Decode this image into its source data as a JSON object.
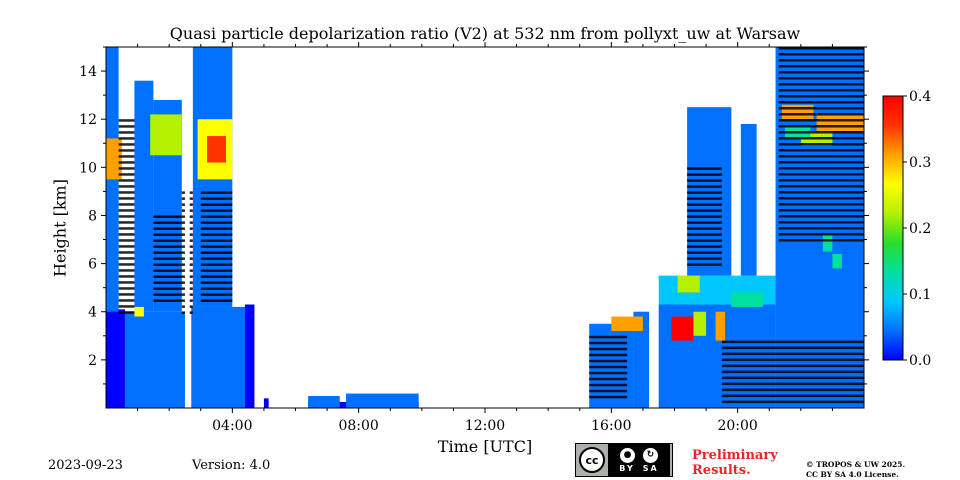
{
  "chart_data": {
    "type": "heatmap",
    "title": "Quasi particle depolarization ratio (V2) at 532 nm from pollyxt_uw at Warsaw",
    "xlabel": "Time [UTC]",
    "ylabel": "Height [km]",
    "x_ticks": [
      "04:00",
      "08:00",
      "12:00",
      "16:00",
      "20:00"
    ],
    "x_tick_hours": [
      4,
      8,
      12,
      16,
      20
    ],
    "xlim_hours": [
      0,
      24
    ],
    "y_ticks": [
      2,
      4,
      6,
      8,
      10,
      12,
      14
    ],
    "ylim_km": [
      0,
      15
    ],
    "colorbar": {
      "ticks": [
        "0.0",
        "0.1",
        "0.2",
        "0.3",
        "0.4"
      ],
      "tick_values": [
        0.0,
        0.1,
        0.2,
        0.3,
        0.4
      ],
      "range": [
        0.0,
        0.4
      ],
      "colormap": [
        "#0000ff",
        "#0070ff",
        "#00c8ff",
        "#00e0a0",
        "#2cdc2c",
        "#b4f000",
        "#ffff00",
        "#ffa000",
        "#ff3200",
        "#ff0000"
      ]
    },
    "regions": [
      {
        "t0": 0.0,
        "t1": 0.6,
        "h0": 0.0,
        "h1": 4.1,
        "v": 0.02
      },
      {
        "t0": 0.6,
        "t1": 2.55,
        "h0": 0.0,
        "h1": 4.0,
        "v": 0.03
      },
      {
        "t0": 2.7,
        "t1": 4.4,
        "h0": 0.0,
        "h1": 4.2,
        "v": 0.025
      },
      {
        "t0": 4.4,
        "t1": 4.7,
        "h0": 0.0,
        "h1": 4.3,
        "v": 0.02
      },
      {
        "t0": 5.0,
        "t1": 5.15,
        "h0": 0.0,
        "h1": 0.4,
        "v": 0.02
      },
      {
        "t0": 6.4,
        "t1": 9.9,
        "h0": 0.0,
        "h1": 0.25,
        "v": 0.02
      },
      {
        "t0": 6.4,
        "t1": 7.4,
        "h0": 0.0,
        "h1": 0.5,
        "v": 0.03
      },
      {
        "t0": 7.6,
        "t1": 9.9,
        "h0": 0.0,
        "h1": 0.6,
        "v": 0.03
      },
      {
        "t0": 0.0,
        "t1": 0.4,
        "h0": 4.0,
        "h1": 15.0,
        "v": 0.05
      },
      {
        "t0": 0.9,
        "t1": 1.5,
        "h0": 4.0,
        "h1": 13.6,
        "v": 0.05
      },
      {
        "t0": 1.5,
        "t1": 2.4,
        "h0": 4.0,
        "h1": 12.8,
        "v": 0.06
      },
      {
        "t0": 2.75,
        "t1": 4.0,
        "h0": 4.2,
        "h1": 15.0,
        "v": 0.05
      },
      {
        "t0": 15.3,
        "t1": 16.7,
        "h0": 0.0,
        "h1": 3.5,
        "v": 0.03
      },
      {
        "t0": 16.7,
        "t1": 17.2,
        "h0": 0.0,
        "h1": 4.0,
        "v": 0.04
      },
      {
        "t0": 17.5,
        "t1": 21.2,
        "h0": 0.0,
        "h1": 4.3,
        "v": 0.03
      },
      {
        "t0": 17.5,
        "t1": 21.2,
        "h0": 4.3,
        "h1": 5.5,
        "v": 0.08
      },
      {
        "t0": 18.4,
        "t1": 19.8,
        "h0": 5.5,
        "h1": 12.5,
        "v": 0.05
      },
      {
        "t0": 20.1,
        "t1": 20.6,
        "h0": 5.5,
        "h1": 11.8,
        "v": 0.04
      },
      {
        "t0": 21.2,
        "t1": 24.0,
        "h0": 0.0,
        "h1": 15.0,
        "v": 0.04
      },
      {
        "t0": 0.0,
        "t1": 0.5,
        "h0": 9.5,
        "h1": 11.2,
        "v": 0.3
      },
      {
        "t0": 1.4,
        "t1": 2.4,
        "h0": 10.5,
        "h1": 12.2,
        "v": 0.2
      },
      {
        "t0": 2.9,
        "t1": 4.0,
        "h0": 9.5,
        "h1": 12.0,
        "v": 0.28
      },
      {
        "t0": 3.2,
        "t1": 3.8,
        "h0": 10.2,
        "h1": 11.3,
        "v": 0.36
      },
      {
        "t0": 16.0,
        "t1": 17.0,
        "h0": 3.2,
        "h1": 3.8,
        "v": 0.3
      },
      {
        "t0": 17.9,
        "t1": 18.6,
        "h0": 2.8,
        "h1": 3.8,
        "v": 0.38
      },
      {
        "t0": 18.6,
        "t1": 19.0,
        "h0": 3.0,
        "h1": 4.0,
        "v": 0.22
      },
      {
        "t0": 19.3,
        "t1": 19.6,
        "h0": 2.8,
        "h1": 4.0,
        "v": 0.33
      },
      {
        "t0": 19.8,
        "t1": 20.8,
        "h0": 4.2,
        "h1": 4.8,
        "v": 0.15
      },
      {
        "t0": 21.4,
        "t1": 22.4,
        "h0": 12.0,
        "h1": 12.6,
        "v": 0.32
      },
      {
        "t0": 22.5,
        "t1": 24.0,
        "h0": 11.5,
        "h1": 12.2,
        "v": 0.3
      },
      {
        "t0": 22.0,
        "t1": 23.0,
        "h0": 10.9,
        "h1": 11.5,
        "v": 0.2
      },
      {
        "t0": 21.5,
        "t1": 22.3,
        "h0": 11.2,
        "h1": 11.7,
        "v": 0.15
      },
      {
        "t0": 22.7,
        "t1": 23.0,
        "h0": 6.5,
        "h1": 7.2,
        "v": 0.15
      },
      {
        "t0": 23.0,
        "t1": 23.3,
        "h0": 5.8,
        "h1": 6.4,
        "v": 0.12
      },
      {
        "t0": 0.9,
        "t1": 1.2,
        "h0": 3.8,
        "h1": 4.2,
        "v": 0.25
      },
      {
        "t0": 18.1,
        "t1": 18.8,
        "h0": 4.8,
        "h1": 5.5,
        "v": 0.2
      }
    ],
    "black_bands": [
      {
        "t0": 0.4,
        "t1": 0.9,
        "h0": 4.0,
        "h1": 12.0
      },
      {
        "t0": 2.4,
        "t1": 2.75,
        "h0": 4.0,
        "h1": 9.0
      },
      {
        "t0": 3.0,
        "t1": 4.0,
        "h0": 4.5,
        "h1": 9.0
      },
      {
        "t0": 1.5,
        "t1": 2.4,
        "h0": 4.5,
        "h1": 8.0
      },
      {
        "t0": 15.3,
        "t1": 16.5,
        "h0": 0.5,
        "h1": 3.0
      },
      {
        "t0": 19.5,
        "t1": 24.0,
        "h0": 0.2,
        "h1": 2.8
      },
      {
        "t0": 21.3,
        "t1": 24.0,
        "h0": 7.0,
        "h1": 15.0
      },
      {
        "t0": 18.4,
        "t1": 19.5,
        "h0": 6.0,
        "h1": 10.0
      }
    ],
    "gaps": [
      {
        "t0": 2.5,
        "t1": 2.65,
        "h0": 0.0,
        "h1": 15.0
      },
      {
        "t0": 17.2,
        "t1": 17.45,
        "h0": 0.0,
        "h1": 5.0
      }
    ]
  },
  "footer": {
    "date": "2023-09-23",
    "version": "Version: 4.0",
    "cc_by": "BY",
    "cc_sa": "SA",
    "preliminary_line1": "Preliminary",
    "preliminary_line2": "Results.",
    "copyright_line1": "© TROPOS & UW 2025.",
    "copyright_line2": "CC BY SA 4.0 License."
  }
}
